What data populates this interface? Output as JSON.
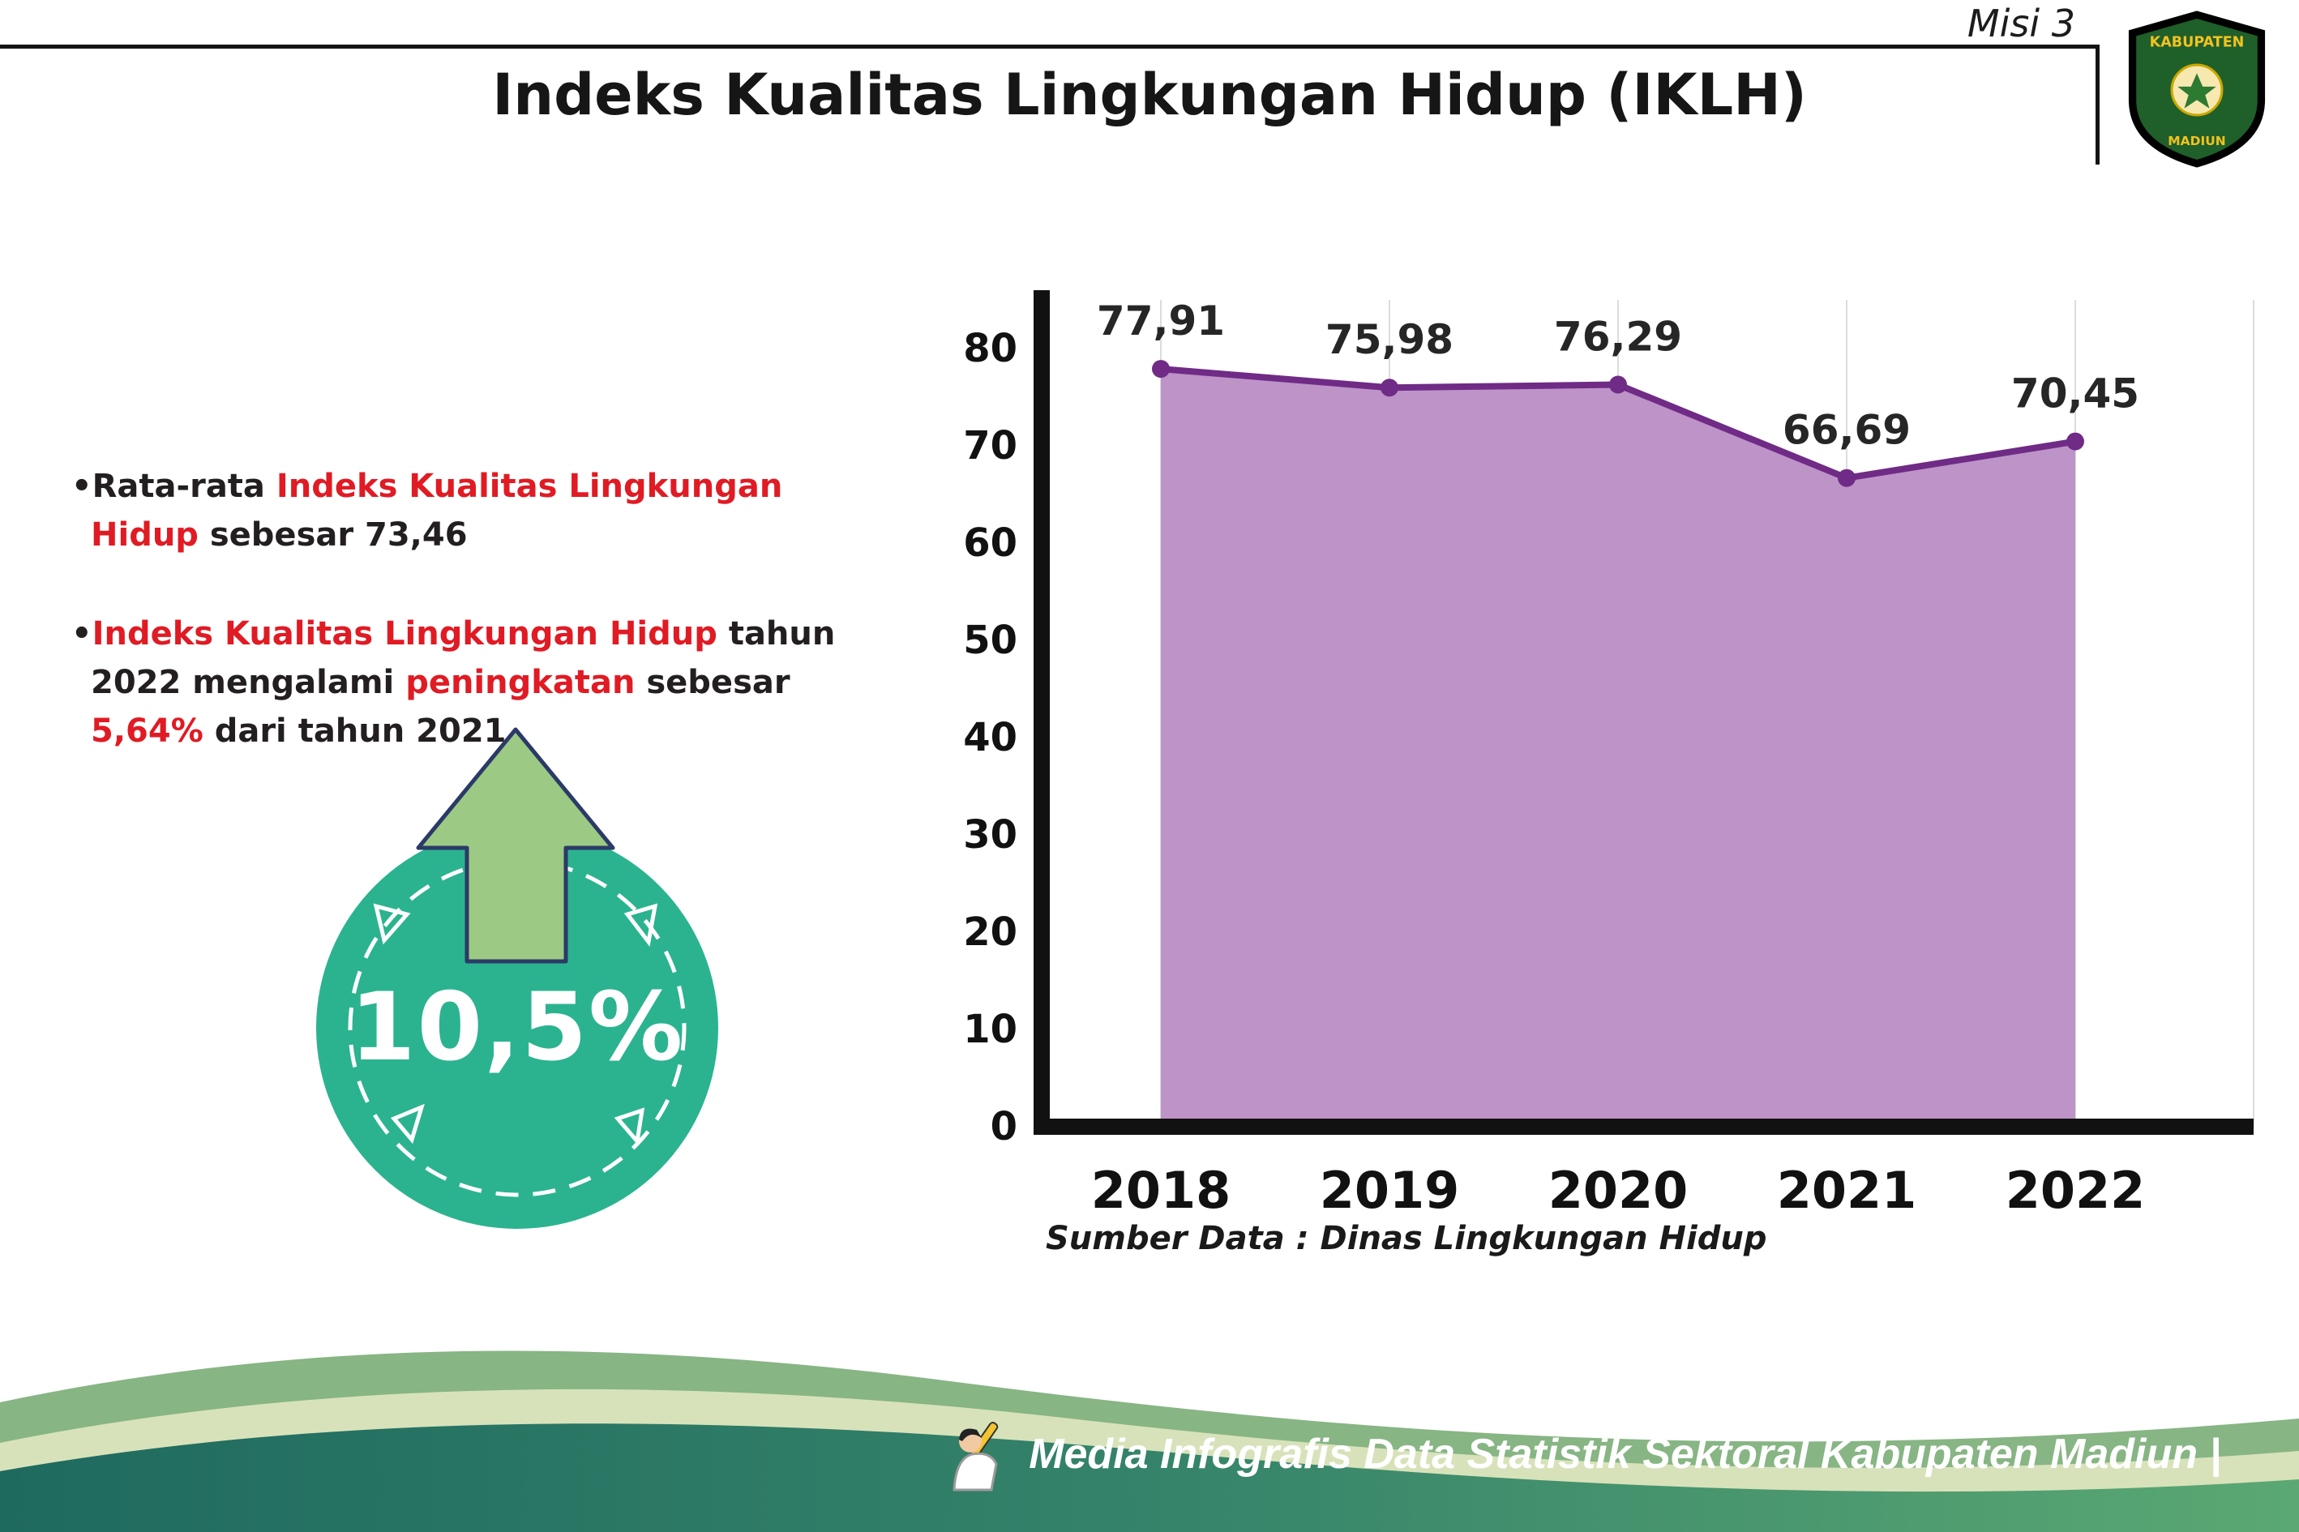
{
  "page": {
    "misi": "Misi 3",
    "title": "Indeks Kualitas Lingkungan Hidup (IKLH)"
  },
  "bullets": [
    {
      "segments": [
        {
          "text": "Rata-rata ",
          "color": "dark"
        },
        {
          "text": "Indeks Kualitas Lingkungan Hidup",
          "color": "red"
        },
        {
          "text": " sebesar 73,46",
          "color": "dark"
        }
      ]
    },
    {
      "segments": [
        {
          "text": "Indeks Kualitas Lingkungan Hidup",
          "color": "red"
        },
        {
          "text": " tahun 2022 mengalami ",
          "color": "dark"
        },
        {
          "text": "peningkatan",
          "color": "red"
        },
        {
          "text": " sebesar ",
          "color": "dark"
        },
        {
          "text": "5,64%",
          "color": "red"
        },
        {
          "text": " dari tahun 2021",
          "color": "dark"
        }
      ]
    }
  ],
  "badge": {
    "value": "10,5%"
  },
  "chart_data": {
    "type": "area",
    "categories": [
      "2018",
      "2019",
      "2020",
      "2021",
      "2022"
    ],
    "values": [
      77.91,
      75.98,
      76.29,
      66.69,
      70.45
    ],
    "value_labels": [
      "77,91",
      "75,98",
      "76,29",
      "66,69",
      "70,45"
    ],
    "title": "",
    "xlabel": "",
    "ylabel": "",
    "ylim": [
      0,
      80
    ],
    "yticks": [
      0,
      10,
      20,
      30,
      40,
      50,
      60,
      70,
      80
    ],
    "grid": "vertical-faint",
    "legend": "none",
    "colors": {
      "area": "#bd93c8",
      "line": "#6f2b85",
      "point": "#6f2b85"
    }
  },
  "source": "Sumber Data : Dinas Lingkungan Hidup",
  "footer": {
    "credit": "Media Infografis Data Statistik Sektoral Kabupaten Madiun |"
  },
  "logo": {
    "top": "KABUPATEN",
    "bottom": "MADIUN"
  },
  "colors": {
    "red": "#e01b24",
    "teal": "#2bb390",
    "arrow_green": "#9cca84",
    "area_purple": "#bd93c8",
    "line_purple": "#6f2b85"
  }
}
